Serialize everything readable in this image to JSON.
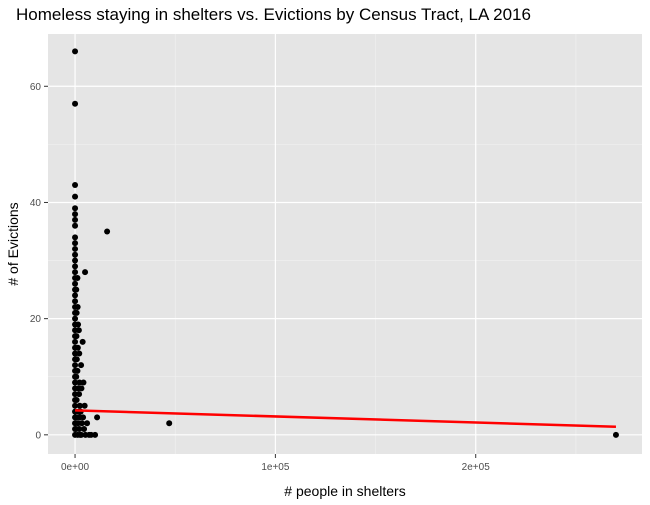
{
  "chart_data": {
    "type": "scatter",
    "title": "Homeless staying in shelters vs. Evictions by Census Tract, LA 2016",
    "xlabel": "# people in shelters",
    "ylabel": "# of Evictions",
    "xlim": [
      -13500,
      283000
    ],
    "ylim": [
      -3.3,
      69
    ],
    "x_ticks": [
      0,
      100000,
      200000
    ],
    "x_tick_labels": [
      "0e+00",
      "1e+05",
      "2e+05"
    ],
    "y_ticks": [
      0,
      20,
      40,
      60
    ],
    "y_tick_labels": [
      "0",
      "20",
      "40",
      "60"
    ],
    "grid": true,
    "background": "#e5e5e5",
    "point_color": "#000000",
    "trend_color": "#ff0000",
    "points": [
      {
        "x": 0,
        "y": 66
      },
      {
        "x": 0,
        "y": 57
      },
      {
        "x": 0,
        "y": 43
      },
      {
        "x": 0,
        "y": 41
      },
      {
        "x": 0,
        "y": 39
      },
      {
        "x": 0,
        "y": 38
      },
      {
        "x": 0,
        "y": 37
      },
      {
        "x": 0,
        "y": 36
      },
      {
        "x": 0,
        "y": 34
      },
      {
        "x": 0,
        "y": 33
      },
      {
        "x": 0,
        "y": 32
      },
      {
        "x": 0,
        "y": 31
      },
      {
        "x": 0,
        "y": 30
      },
      {
        "x": 0,
        "y": 29
      },
      {
        "x": 0,
        "y": 28
      },
      {
        "x": 0,
        "y": 27
      },
      {
        "x": 0,
        "y": 26
      },
      {
        "x": 0,
        "y": 25
      },
      {
        "x": 0,
        "y": 24
      },
      {
        "x": 0,
        "y": 23
      },
      {
        "x": 0,
        "y": 22
      },
      {
        "x": 0,
        "y": 21
      },
      {
        "x": 0,
        "y": 20
      },
      {
        "x": 0,
        "y": 19
      },
      {
        "x": 0,
        "y": 18
      },
      {
        "x": 0,
        "y": 17
      },
      {
        "x": 0,
        "y": 16
      },
      {
        "x": 0,
        "y": 15
      },
      {
        "x": 0,
        "y": 14
      },
      {
        "x": 0,
        "y": 13
      },
      {
        "x": 0,
        "y": 12
      },
      {
        "x": 0,
        "y": 11
      },
      {
        "x": 0,
        "y": 10
      },
      {
        "x": 0,
        "y": 9
      },
      {
        "x": 0,
        "y": 8
      },
      {
        "x": 0,
        "y": 7
      },
      {
        "x": 0,
        "y": 6
      },
      {
        "x": 0,
        "y": 5
      },
      {
        "x": 0,
        "y": 4
      },
      {
        "x": 0,
        "y": 3
      },
      {
        "x": 0,
        "y": 2
      },
      {
        "x": 0,
        "y": 1
      },
      {
        "x": 0,
        "y": 0
      },
      {
        "x": 600,
        "y": 25
      },
      {
        "x": 800,
        "y": 21
      },
      {
        "x": 700,
        "y": 17
      },
      {
        "x": 900,
        "y": 13
      },
      {
        "x": 600,
        "y": 10
      },
      {
        "x": 800,
        "y": 6
      },
      {
        "x": 700,
        "y": 3
      },
      {
        "x": 500,
        "y": 1
      },
      {
        "x": 1200,
        "y": 27
      },
      {
        "x": 1300,
        "y": 22
      },
      {
        "x": 1500,
        "y": 19
      },
      {
        "x": 1400,
        "y": 15
      },
      {
        "x": 1200,
        "y": 11
      },
      {
        "x": 1600,
        "y": 8
      },
      {
        "x": 1800,
        "y": 4
      },
      {
        "x": 1500,
        "y": 2
      },
      {
        "x": 1300,
        "y": 0
      },
      {
        "x": 1900,
        "y": 18
      },
      {
        "x": 2100,
        "y": 14
      },
      {
        "x": 2200,
        "y": 9
      },
      {
        "x": 2000,
        "y": 7
      },
      {
        "x": 2400,
        "y": 5
      },
      {
        "x": 2300,
        "y": 3
      },
      {
        "x": 2100,
        "y": 1
      },
      {
        "x": 2500,
        "y": 0
      },
      {
        "x": 3000,
        "y": 12
      },
      {
        "x": 3200,
        "y": 8
      },
      {
        "x": 2800,
        "y": 4
      },
      {
        "x": 3400,
        "y": 2
      },
      {
        "x": 3100,
        "y": 0
      },
      {
        "x": 3800,
        "y": 16
      },
      {
        "x": 4200,
        "y": 9
      },
      {
        "x": 4000,
        "y": 3
      },
      {
        "x": 4500,
        "y": 1
      },
      {
        "x": 5000,
        "y": 28
      },
      {
        "x": 4800,
        "y": 5
      },
      {
        "x": 5200,
        "y": 0
      },
      {
        "x": 6000,
        "y": 2
      },
      {
        "x": 7000,
        "y": 0
      },
      {
        "x": 8000,
        "y": 0
      },
      {
        "x": 10000,
        "y": 0
      },
      {
        "x": 11000,
        "y": 3
      },
      {
        "x": 16000,
        "y": 35
      },
      {
        "x": 47000,
        "y": 2
      },
      {
        "x": 270000,
        "y": 0
      }
    ],
    "trend_line": {
      "x": [
        0,
        270000
      ],
      "y": [
        4.2,
        1.4
      ]
    }
  }
}
